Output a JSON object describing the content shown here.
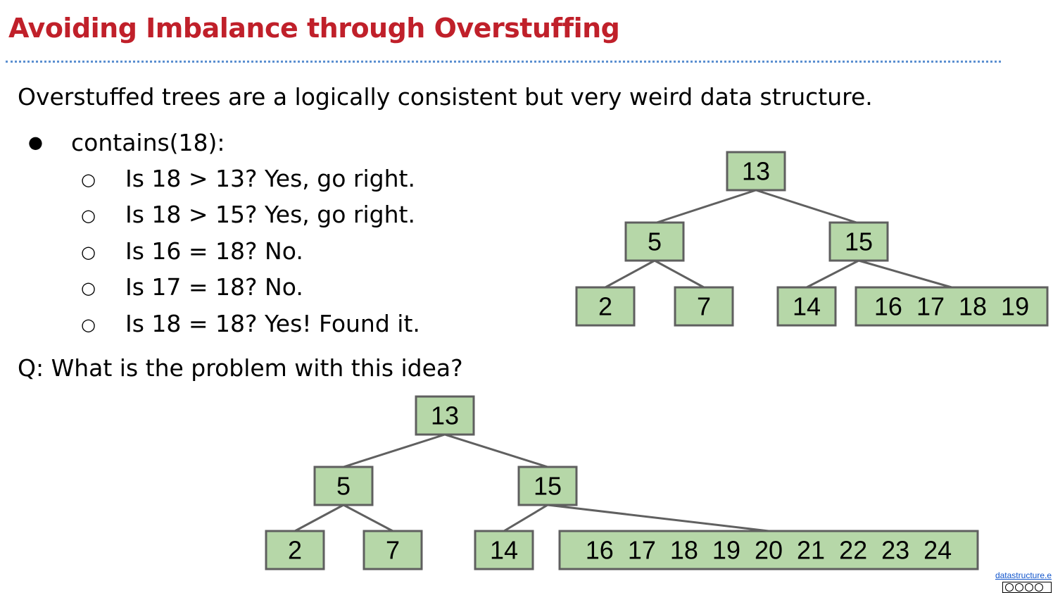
{
  "title": "Avoiding Imbalance through Overstuffing",
  "intro": "Overstuffed trees are a logically consistent but very weird data structure.",
  "bullet": {
    "label": "contains(18):",
    "steps": [
      "Is 18 > 13? Yes, go right.",
      "Is 18 > 15? Yes, go right.",
      "Is 16 = 18? No.",
      "Is 17 = 18? No.",
      "Is 18 = 18? Yes! Found it."
    ]
  },
  "question": "Q: What is the problem with this idea?",
  "tree_top": {
    "root": "13",
    "left": "5",
    "right": "15",
    "leaves": [
      "2",
      "7",
      "14",
      "16  17  18  19"
    ]
  },
  "tree_bottom": {
    "root": "13",
    "left": "5",
    "right": "15",
    "leaves": [
      "2",
      "7",
      "14",
      "16  17  18  19  20  21  22  23  24"
    ]
  },
  "footer": {
    "link": "datastructure.e"
  },
  "colors": {
    "title": "#c0202a",
    "node_fill": "#b6d7a8",
    "node_stroke": "#5f5f5f",
    "rule": "#5b8fd0"
  }
}
